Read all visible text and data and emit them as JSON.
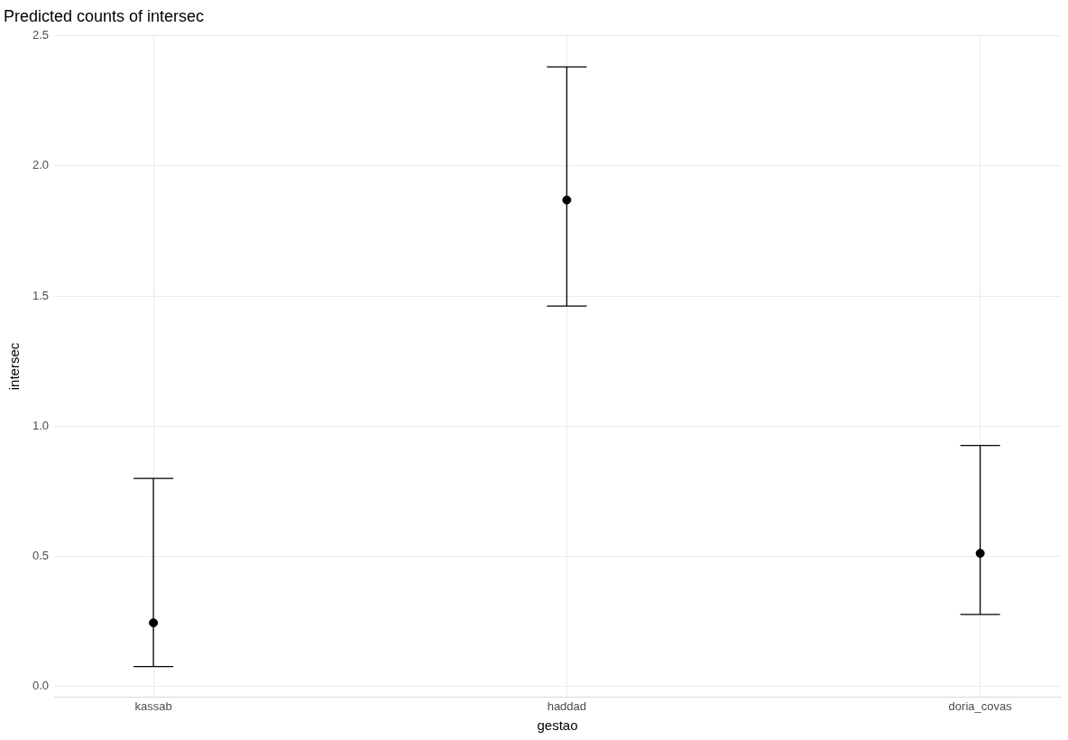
{
  "chart_data": {
    "type": "scatter",
    "title": "Predicted counts of intersec",
    "xlabel": "gestao",
    "ylabel": "intersec",
    "categories": [
      "kassab",
      "haddad",
      "doria_covas"
    ],
    "values": [
      0.245,
      1.869,
      0.512
    ],
    "errors": [
      [
        0.077,
        0.8
      ],
      [
        1.462,
        2.38
      ],
      [
        0.277,
        0.926
      ]
    ],
    "color": "#000000",
    "marker": "circle",
    "ylim": [
      -0.04,
      2.5
    ],
    "yticks": [
      {
        "value": 0,
        "label": "0.0"
      },
      0.5,
      {
        "value": 1,
        "label": "1.0"
      },
      1.5,
      {
        "value": 2,
        "label": "2.0"
      },
      2.5
    ],
    "grid": true,
    "legend": false
  }
}
